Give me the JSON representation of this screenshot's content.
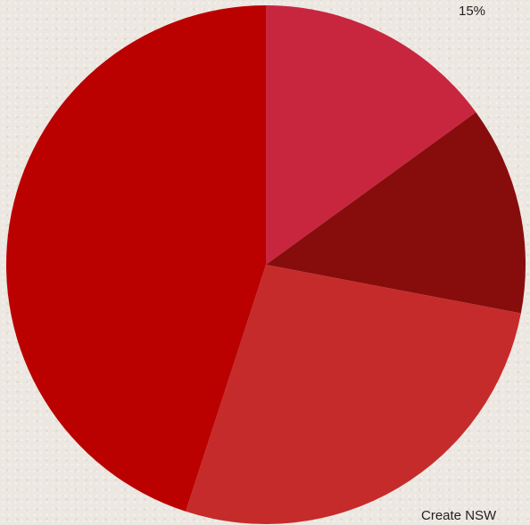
{
  "chart_data": {
    "type": "pie",
    "start_angle_deg": 0,
    "direction": "clockwise",
    "slices": [
      {
        "label": "",
        "value": 15,
        "color": "#c8263f"
      },
      {
        "label": "",
        "value": 13,
        "color": "#870d0d"
      },
      {
        "label": "",
        "value": 27,
        "color": "#c62b2b"
      },
      {
        "label": "",
        "value": 45,
        "color": "#bb0000"
      }
    ],
    "data_labels": [
      {
        "text": "15%",
        "slice_index": 0
      },
      {
        "text": "Create NSW",
        "slice_index": 2
      }
    ]
  }
}
